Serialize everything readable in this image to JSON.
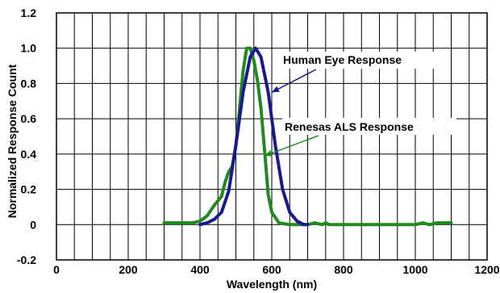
{
  "chart_data": {
    "type": "line",
    "xlabel": "Wavelength (nm)",
    "ylabel": "Normalized Response Count",
    "xlim": [
      0,
      1200
    ],
    "ylim": [
      -0.2,
      1.2
    ],
    "x_ticks": [
      "0",
      "200",
      "400",
      "600",
      "800",
      "1000",
      "1200"
    ],
    "y_ticks": [
      "1.2",
      "1.0",
      "0.8",
      "0.6",
      "0.4",
      "0.2",
      "0",
      "-0.2"
    ],
    "grid": true,
    "series": [
      {
        "name": "Human Eye Response",
        "color": "#1a1a8c",
        "x": [
          400,
          420,
          440,
          460,
          480,
          500,
          520,
          540,
          555,
          570,
          590,
          610,
          630,
          650,
          670,
          690,
          700
        ],
        "y": [
          0.0,
          0.01,
          0.03,
          0.07,
          0.19,
          0.45,
          0.75,
          0.95,
          1.0,
          0.95,
          0.75,
          0.45,
          0.2,
          0.07,
          0.02,
          0.0,
          0.0
        ]
      },
      {
        "name": "Renesas ALS Response",
        "color": "#1f8a1f",
        "x": [
          300,
          340,
          380,
          400,
          420,
          440,
          460,
          470,
          480,
          490,
          500,
          510,
          520,
          530,
          540,
          550,
          560,
          570,
          580,
          590,
          600,
          620,
          650,
          700,
          720,
          740,
          750,
          760,
          800,
          900,
          1000,
          1020,
          1040,
          1060,
          1100
        ],
        "y": [
          0.01,
          0.01,
          0.01,
          0.02,
          0.05,
          0.11,
          0.16,
          0.24,
          0.3,
          0.33,
          0.45,
          0.65,
          0.87,
          1.0,
          1.0,
          0.93,
          0.82,
          0.66,
          0.42,
          0.17,
          0.07,
          0.01,
          0.0,
          0.0,
          0.01,
          0.0,
          0.01,
          0.0,
          0.0,
          0.0,
          0.0,
          0.01,
          0.0,
          0.01,
          0.01
        ]
      }
    ],
    "annotations": [
      {
        "text": "Human Eye Response",
        "series": 0
      },
      {
        "text": "Renesas ALS Response",
        "series": 1
      }
    ]
  }
}
